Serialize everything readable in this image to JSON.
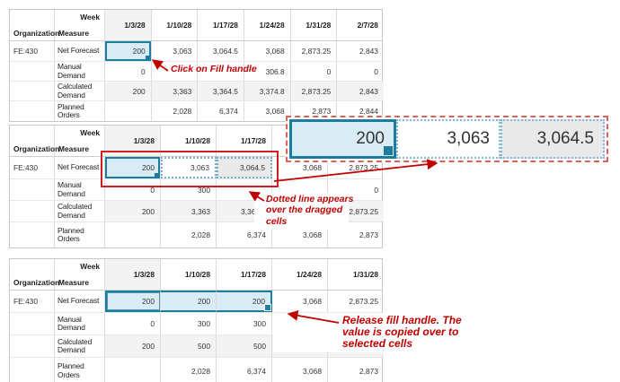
{
  "labels": {
    "week": "Week",
    "organization": "Organization",
    "measure": "Measure"
  },
  "annotations": {
    "click_fill": "Click on Fill handle",
    "dotted_note": "Dotted line appears\nover the dragged\ncells",
    "release_note": "Release fill handle. The\nvalue is copied over to\nselected cells"
  },
  "callout": {
    "cells": [
      {
        "v": "200",
        "state": "selected"
      },
      {
        "v": "3,063",
        "state": "plain"
      },
      {
        "v": "3,064.5",
        "state": "gray"
      }
    ]
  },
  "colors": {
    "selection_border": "#1b7ea1",
    "selection_fill": "#d9ecf5",
    "annotation_red": "#c00000",
    "callout_dash": "#e0605c",
    "readonly_gray": "#e9e9e9",
    "row_gray": "#f3f3f3"
  },
  "tables": [
    {
      "name": "step1-click-fill-handle",
      "week_columns": [
        "1/3/28",
        "1/10/28",
        "1/17/28",
        "1/24/28",
        "1/31/28",
        "2/7/28"
      ],
      "rows": [
        {
          "org": "FE:430",
          "measure": "Net Forecast",
          "gray": false,
          "cells": [
            {
              "v": "200",
              "s": "sel"
            },
            {
              "v": "3,063"
            },
            {
              "v": "3,064.5"
            },
            {
              "v": "3,068"
            },
            {
              "v": "2,873.25"
            },
            {
              "v": "2,843"
            }
          ]
        },
        {
          "org": "",
          "measure": "Manual Demand",
          "gray": false,
          "cells": [
            {
              "v": "0"
            },
            {
              "v": ""
            },
            {
              "v": ""
            },
            {
              "v": "306.8"
            },
            {
              "v": "0"
            },
            {
              "v": "0"
            }
          ]
        },
        {
          "org": "",
          "measure": "Calculated Demand",
          "gray": true,
          "cells": [
            {
              "v": "200"
            },
            {
              "v": "3,363"
            },
            {
              "v": "3,364.5"
            },
            {
              "v": "3,374.8"
            },
            {
              "v": "2,873.25"
            },
            {
              "v": "2,843"
            }
          ]
        },
        {
          "org": "",
          "measure": "Planned Orders",
          "gray": false,
          "cells": [
            {
              "v": ""
            },
            {
              "v": "2,028"
            },
            {
              "v": "6,374"
            },
            {
              "v": "3,068"
            },
            {
              "v": "2,873"
            },
            {
              "v": "2,844"
            }
          ]
        }
      ]
    },
    {
      "name": "step2-drag-fill-handle",
      "week_columns": [
        "1/3/28",
        "1/10/28",
        "1/17/28",
        "",
        ""
      ],
      "rows": [
        {
          "org": "FE:430",
          "measure": "Net Forecast",
          "gray": false,
          "cells": [
            {
              "v": "200",
              "s": "sel"
            },
            {
              "v": "3,063",
              "s": "dotted"
            },
            {
              "v": "3,064.5",
              "s": "dotted-gray"
            },
            {
              "v": "3,068"
            },
            {
              "v": "2,873.25"
            }
          ]
        },
        {
          "org": "",
          "measure": "Manual Demand",
          "gray": false,
          "cells": [
            {
              "v": "0"
            },
            {
              "v": "300"
            },
            {
              "v": ""
            },
            {
              "v": ""
            },
            {
              "v": "0"
            }
          ]
        },
        {
          "org": "",
          "measure": "Calculated Demand",
          "gray": true,
          "cells": [
            {
              "v": "200"
            },
            {
              "v": "3,363"
            },
            {
              "v": "3,364.5"
            },
            {
              "v": ""
            },
            {
              "v": "2,873.25"
            }
          ]
        },
        {
          "org": "",
          "measure": "Planned Orders",
          "gray": false,
          "cells": [
            {
              "v": ""
            },
            {
              "v": "2,028"
            },
            {
              "v": "6,374"
            },
            {
              "v": "3,068"
            },
            {
              "v": "2,873"
            }
          ]
        }
      ]
    },
    {
      "name": "step3-release-fill-handle",
      "week_columns": [
        "1/3/28",
        "1/10/28",
        "1/17/28",
        "1/24/28",
        "1/31/28"
      ],
      "rows": [
        {
          "org": "FE:430",
          "measure": "Net Forecast",
          "gray": false,
          "cells": [
            {
              "v": "200",
              "s": "range range-first"
            },
            {
              "v": "200",
              "s": "range"
            },
            {
              "v": "200",
              "s": "range range-last"
            },
            {
              "v": "3,068"
            },
            {
              "v": "2,873.25"
            }
          ]
        },
        {
          "org": "",
          "measure": "Manual Demand",
          "gray": false,
          "cells": [
            {
              "v": "0"
            },
            {
              "v": "300"
            },
            {
              "v": "300"
            },
            {
              "v": ""
            },
            {
              "v": ""
            }
          ]
        },
        {
          "org": "",
          "measure": "Calculated Demand",
          "gray": true,
          "cells": [
            {
              "v": "200"
            },
            {
              "v": "500"
            },
            {
              "v": "500"
            },
            {
              "v": ""
            },
            {
              "v": ""
            }
          ]
        },
        {
          "org": "",
          "measure": "Planned Orders",
          "gray": false,
          "cells": [
            {
              "v": ""
            },
            {
              "v": "2,028"
            },
            {
              "v": "6,374"
            },
            {
              "v": "3,068"
            },
            {
              "v": "2,873"
            }
          ]
        }
      ]
    }
  ]
}
